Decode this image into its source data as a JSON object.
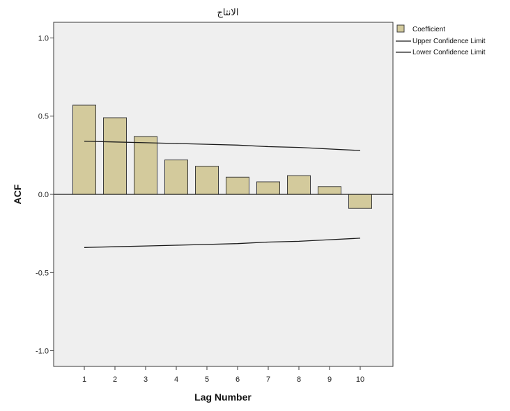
{
  "chart_data": {
    "type": "bar",
    "title": "الانتاج",
    "xlabel": "Lag Number",
    "ylabel": "ACF",
    "categories": [
      "1",
      "2",
      "3",
      "4",
      "5",
      "6",
      "7",
      "8",
      "9",
      "10"
    ],
    "series": [
      {
        "name": "Coefficient",
        "values": [
          0.57,
          0.49,
          0.37,
          0.22,
          0.18,
          0.11,
          0.08,
          0.12,
          0.05,
          -0.09
        ]
      }
    ],
    "confidence_limits": {
      "upper": {
        "name": "Upper Confidence Limit",
        "values": [
          0.34,
          0.335,
          0.33,
          0.325,
          0.32,
          0.315,
          0.305,
          0.3,
          0.29,
          0.28
        ]
      },
      "lower": {
        "name": "Lower Confidence Limit",
        "values": [
          -0.34,
          -0.335,
          -0.33,
          -0.325,
          -0.32,
          -0.315,
          -0.305,
          -0.3,
          -0.29,
          -0.28
        ]
      }
    },
    "ylim": [
      -1.1,
      1.1
    ],
    "yticks": [
      "1.0",
      "0.5",
      "0.0",
      "-0.5",
      "-1.0"
    ],
    "ytick_values": [
      1.0,
      0.5,
      0.0,
      -0.5,
      -1.0
    ],
    "grid": false,
    "legend_position": "top-right",
    "colors": {
      "bar_fill": "#d3ca9c",
      "bar_stroke": "#3c3c3c",
      "plot_background": "#efefef",
      "line": "#1a1a1a"
    }
  }
}
